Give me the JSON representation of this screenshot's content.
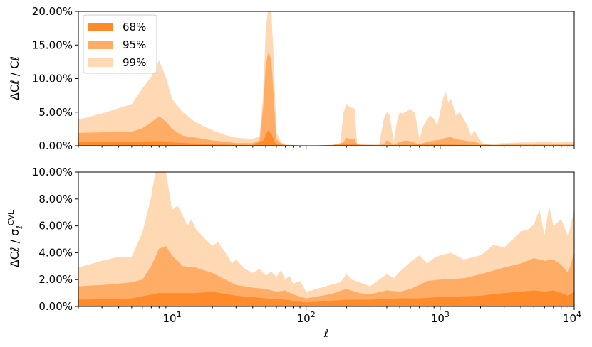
{
  "chart_data": [
    {
      "type": "area",
      "xscale": "log",
      "xlim": [
        2,
        10000
      ],
      "ylim": [
        0,
        20
      ],
      "ylabel": "ΔC_ℓ / C_ℓ",
      "y_ticks": [
        "0.00%",
        "5.00%",
        "10.00%",
        "15.00%",
        "20.00%"
      ],
      "y_tick_values": [
        0,
        5,
        10,
        15,
        20
      ],
      "legend": {
        "position": "top-left",
        "entries": [
          "68%",
          "95%",
          "99%"
        ]
      },
      "series": [
        {
          "name": "99%",
          "color": "#ffd8b4",
          "x": [
            2,
            3,
            4,
            5,
            6,
            7,
            8,
            9,
            10,
            12,
            15,
            20,
            25,
            30,
            40,
            45,
            48,
            50,
            52,
            55,
            57,
            60,
            65,
            70,
            80,
            100,
            150,
            180,
            190,
            200,
            210,
            230,
            240,
            260,
            300,
            350,
            380,
            400,
            420,
            450,
            480,
            500,
            520,
            550,
            600,
            650,
            700,
            750,
            800,
            850,
            900,
            950,
            1000,
            1050,
            1100,
            1150,
            1200,
            1250,
            1300,
            1400,
            1500,
            1600,
            1700,
            1800,
            1900,
            2000,
            2100,
            2200,
            2500,
            3000,
            4000,
            5000,
            6000,
            7000,
            8000,
            9000,
            10000
          ],
          "values": [
            3.9,
            4.8,
            5.6,
            6.2,
            8.5,
            10.3,
            12.7,
            10.2,
            7.0,
            5.0,
            3.5,
            2.3,
            1.6,
            1.2,
            1.0,
            1.5,
            8.0,
            17.5,
            20.0,
            20.0,
            14.0,
            2.0,
            0.6,
            0.2,
            0.1,
            0.0,
            0.0,
            0.3,
            5.0,
            6.3,
            5.8,
            5.5,
            0.3,
            0.1,
            0.0,
            0.2,
            4.0,
            5.0,
            4.5,
            0.6,
            4.0,
            5.0,
            4.8,
            5.0,
            5.5,
            4.8,
            1.0,
            3.0,
            4.0,
            4.5,
            4.0,
            3.0,
            5.0,
            7.0,
            8.0,
            6.5,
            7.0,
            6.0,
            4.5,
            5.0,
            4.0,
            3.0,
            1.5,
            2.3,
            1.5,
            0.8,
            0.3,
            0.3,
            0.3,
            0.4,
            0.5,
            0.5,
            0.6,
            0.5,
            0.5,
            0.6,
            0.6
          ]
        },
        {
          "name": "95%",
          "color": "#ffad66",
          "x": [
            2,
            3,
            4,
            5,
            6,
            7,
            8,
            9,
            10,
            12,
            15,
            20,
            25,
            30,
            40,
            45,
            48,
            50,
            52,
            55,
            57,
            60,
            65,
            70,
            80,
            100,
            150,
            190,
            200,
            210,
            230,
            240,
            300,
            380,
            400,
            420,
            450,
            500,
            550,
            600,
            700,
            800,
            900,
            1000,
            1100,
            1200,
            1300,
            1500,
            1800,
            2000,
            2500,
            3000,
            5000,
            10000
          ],
          "values": [
            1.9,
            2.0,
            2.1,
            2.1,
            2.6,
            3.5,
            4.4,
            3.6,
            2.5,
            1.5,
            1.2,
            0.8,
            0.6,
            0.4,
            0.4,
            0.8,
            6.0,
            12.0,
            13.8,
            13.0,
            8.0,
            1.0,
            0.3,
            0.1,
            0.1,
            0.0,
            0.0,
            0.5,
            1.2,
            1.0,
            1.1,
            0.2,
            0.0,
            0.2,
            0.8,
            0.6,
            0.1,
            0.6,
            0.8,
            0.7,
            0.2,
            0.6,
            0.8,
            0.9,
            1.2,
            1.3,
            1.0,
            0.8,
            0.6,
            0.3,
            0.1,
            0.2,
            0.2,
            0.2
          ]
        },
        {
          "name": "68%",
          "color": "#ff8b2a",
          "x": [
            2,
            5,
            8,
            10,
            20,
            40,
            48,
            50,
            52,
            55,
            57,
            60,
            70,
            100,
            200,
            400,
            1000,
            2000,
            10000
          ],
          "values": [
            0.5,
            0.6,
            0.7,
            0.5,
            0.2,
            0.1,
            0.8,
            1.6,
            2.3,
            1.8,
            1.0,
            0.2,
            0.1,
            0.0,
            0.2,
            0.1,
            0.2,
            0.1,
            0.05
          ]
        }
      ]
    },
    {
      "type": "area",
      "xscale": "log",
      "xlim": [
        2,
        10000
      ],
      "ylim": [
        0,
        10
      ],
      "xlabel": "ℓ",
      "ylabel": "ΔC_ℓ / σ_ℓ^CVL",
      "y_ticks": [
        "0.00%",
        "2.00%",
        "4.00%",
        "6.00%",
        "8.00%",
        "10.00%"
      ],
      "y_tick_values": [
        0,
        2,
        4,
        6,
        8,
        10
      ],
      "x_ticks": [
        "10",
        "10",
        "10",
        "10"
      ],
      "x_tick_exponents": [
        "1",
        "2",
        "3",
        "4"
      ],
      "x_tick_values": [
        10,
        100,
        1000,
        10000
      ],
      "series": [
        {
          "name": "99%",
          "color": "#ffd8b4",
          "x": [
            2,
            3,
            4,
            5,
            6,
            7,
            7.5,
            8,
            9,
            10,
            11,
            12,
            13,
            14,
            15,
            17,
            20,
            22,
            25,
            28,
            30,
            35,
            40,
            45,
            50,
            55,
            60,
            65,
            70,
            75,
            80,
            90,
            100,
            110,
            120,
            150,
            180,
            200,
            220,
            250,
            300,
            350,
            400,
            450,
            500,
            600,
            700,
            800,
            900,
            1000,
            1200,
            1500,
            2000,
            2500,
            3000,
            3500,
            4000,
            4500,
            5000,
            5500,
            6000,
            6500,
            7000,
            8000,
            9000,
            10000
          ],
          "values": [
            2.9,
            3.4,
            3.7,
            3.7,
            5.5,
            8.2,
            10.0,
            10.0,
            10.0,
            7.2,
            7.5,
            6.8,
            6.0,
            6.5,
            5.8,
            5.2,
            4.5,
            4.8,
            4.0,
            3.2,
            3.5,
            2.8,
            2.5,
            2.8,
            2.3,
            2.6,
            2.2,
            2.7,
            2.0,
            2.3,
            1.7,
            1.9,
            1.1,
            1.2,
            1.3,
            1.6,
            1.8,
            2.4,
            2.0,
            1.8,
            1.5,
            2.0,
            2.4,
            2.1,
            2.6,
            3.3,
            3.8,
            3.2,
            3.6,
            3.8,
            4.0,
            3.5,
            3.8,
            4.6,
            4.4,
            5.0,
            5.6,
            5.7,
            6.1,
            7.2,
            5.3,
            7.5,
            6.0,
            6.5,
            5.2,
            7.2
          ]
        },
        {
          "name": "95%",
          "color": "#ffad66",
          "x": [
            2,
            3,
            4,
            5,
            6,
            7,
            8,
            9,
            10,
            12,
            15,
            20,
            25,
            30,
            40,
            50,
            60,
            70,
            80,
            100,
            150,
            200,
            250,
            300,
            400,
            500,
            600,
            700,
            800,
            1000,
            1500,
            2000,
            3000,
            4000,
            5000,
            6000,
            7000,
            8000,
            9000,
            10000
          ],
          "values": [
            1.5,
            1.6,
            1.7,
            1.8,
            2.0,
            3.0,
            4.3,
            4.5,
            3.8,
            3.0,
            2.9,
            2.5,
            2.0,
            1.6,
            1.4,
            1.3,
            1.1,
            1.2,
            0.9,
            0.6,
            0.9,
            1.3,
            1.0,
            0.9,
            1.2,
            1.1,
            1.3,
            1.6,
            1.9,
            2.0,
            2.1,
            2.4,
            2.9,
            3.2,
            3.6,
            3.4,
            3.5,
            3.1,
            2.5,
            4.0
          ]
        },
        {
          "name": "68%",
          "color": "#ff8b2a",
          "x": [
            2,
            5,
            8,
            10,
            15,
            20,
            30,
            50,
            70,
            100,
            200,
            300,
            500,
            700,
            1000,
            2000,
            3000,
            4000,
            5000,
            6000,
            7000,
            8000,
            9000,
            10000
          ],
          "values": [
            0.5,
            0.6,
            1.0,
            1.0,
            1.0,
            1.1,
            0.8,
            0.6,
            0.5,
            0.3,
            0.5,
            0.5,
            0.6,
            0.6,
            0.7,
            0.8,
            1.0,
            1.1,
            1.2,
            1.1,
            1.2,
            1.0,
            0.8,
            1.1
          ]
        }
      ]
    }
  ]
}
